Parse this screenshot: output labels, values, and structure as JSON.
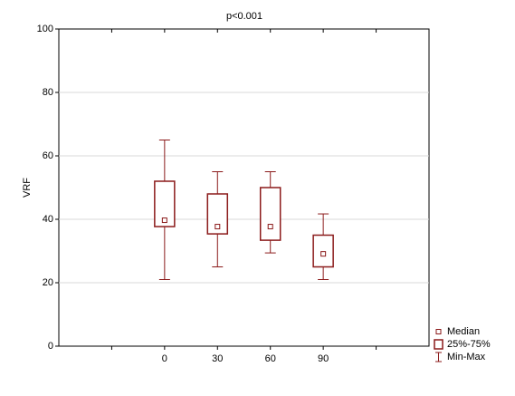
{
  "chart_data": {
    "type": "box",
    "title": "p<0.001",
    "y_label": "VRF",
    "categories": [
      null,
      "0",
      "30",
      "60",
      "90",
      null
    ],
    "boxes": [
      null,
      {
        "min": 21,
        "q1": 37.7,
        "median": 39.7,
        "q3": 52,
        "max": 65
      },
      {
        "min": 25,
        "q1": 35.4,
        "median": 37.7,
        "q3": 48,
        "max": 55
      },
      {
        "min": 29.4,
        "q1": 33.4,
        "median": 37.7,
        "q3": 50,
        "max": 55
      },
      {
        "min": 21,
        "q1": 25,
        "median": 29.1,
        "q3": 35,
        "max": 41.7
      },
      null
    ],
    "color": "#8b1a1a",
    "title_color": "#c0282d",
    "legend": [
      "Median",
      "25%-75%",
      "Min-Max"
    ],
    "legend_position": "bottom-right",
    "ylim": [
      0,
      100
    ],
    "yticks": [
      0,
      20,
      40,
      60,
      80,
      100
    ],
    "grid": true
  }
}
